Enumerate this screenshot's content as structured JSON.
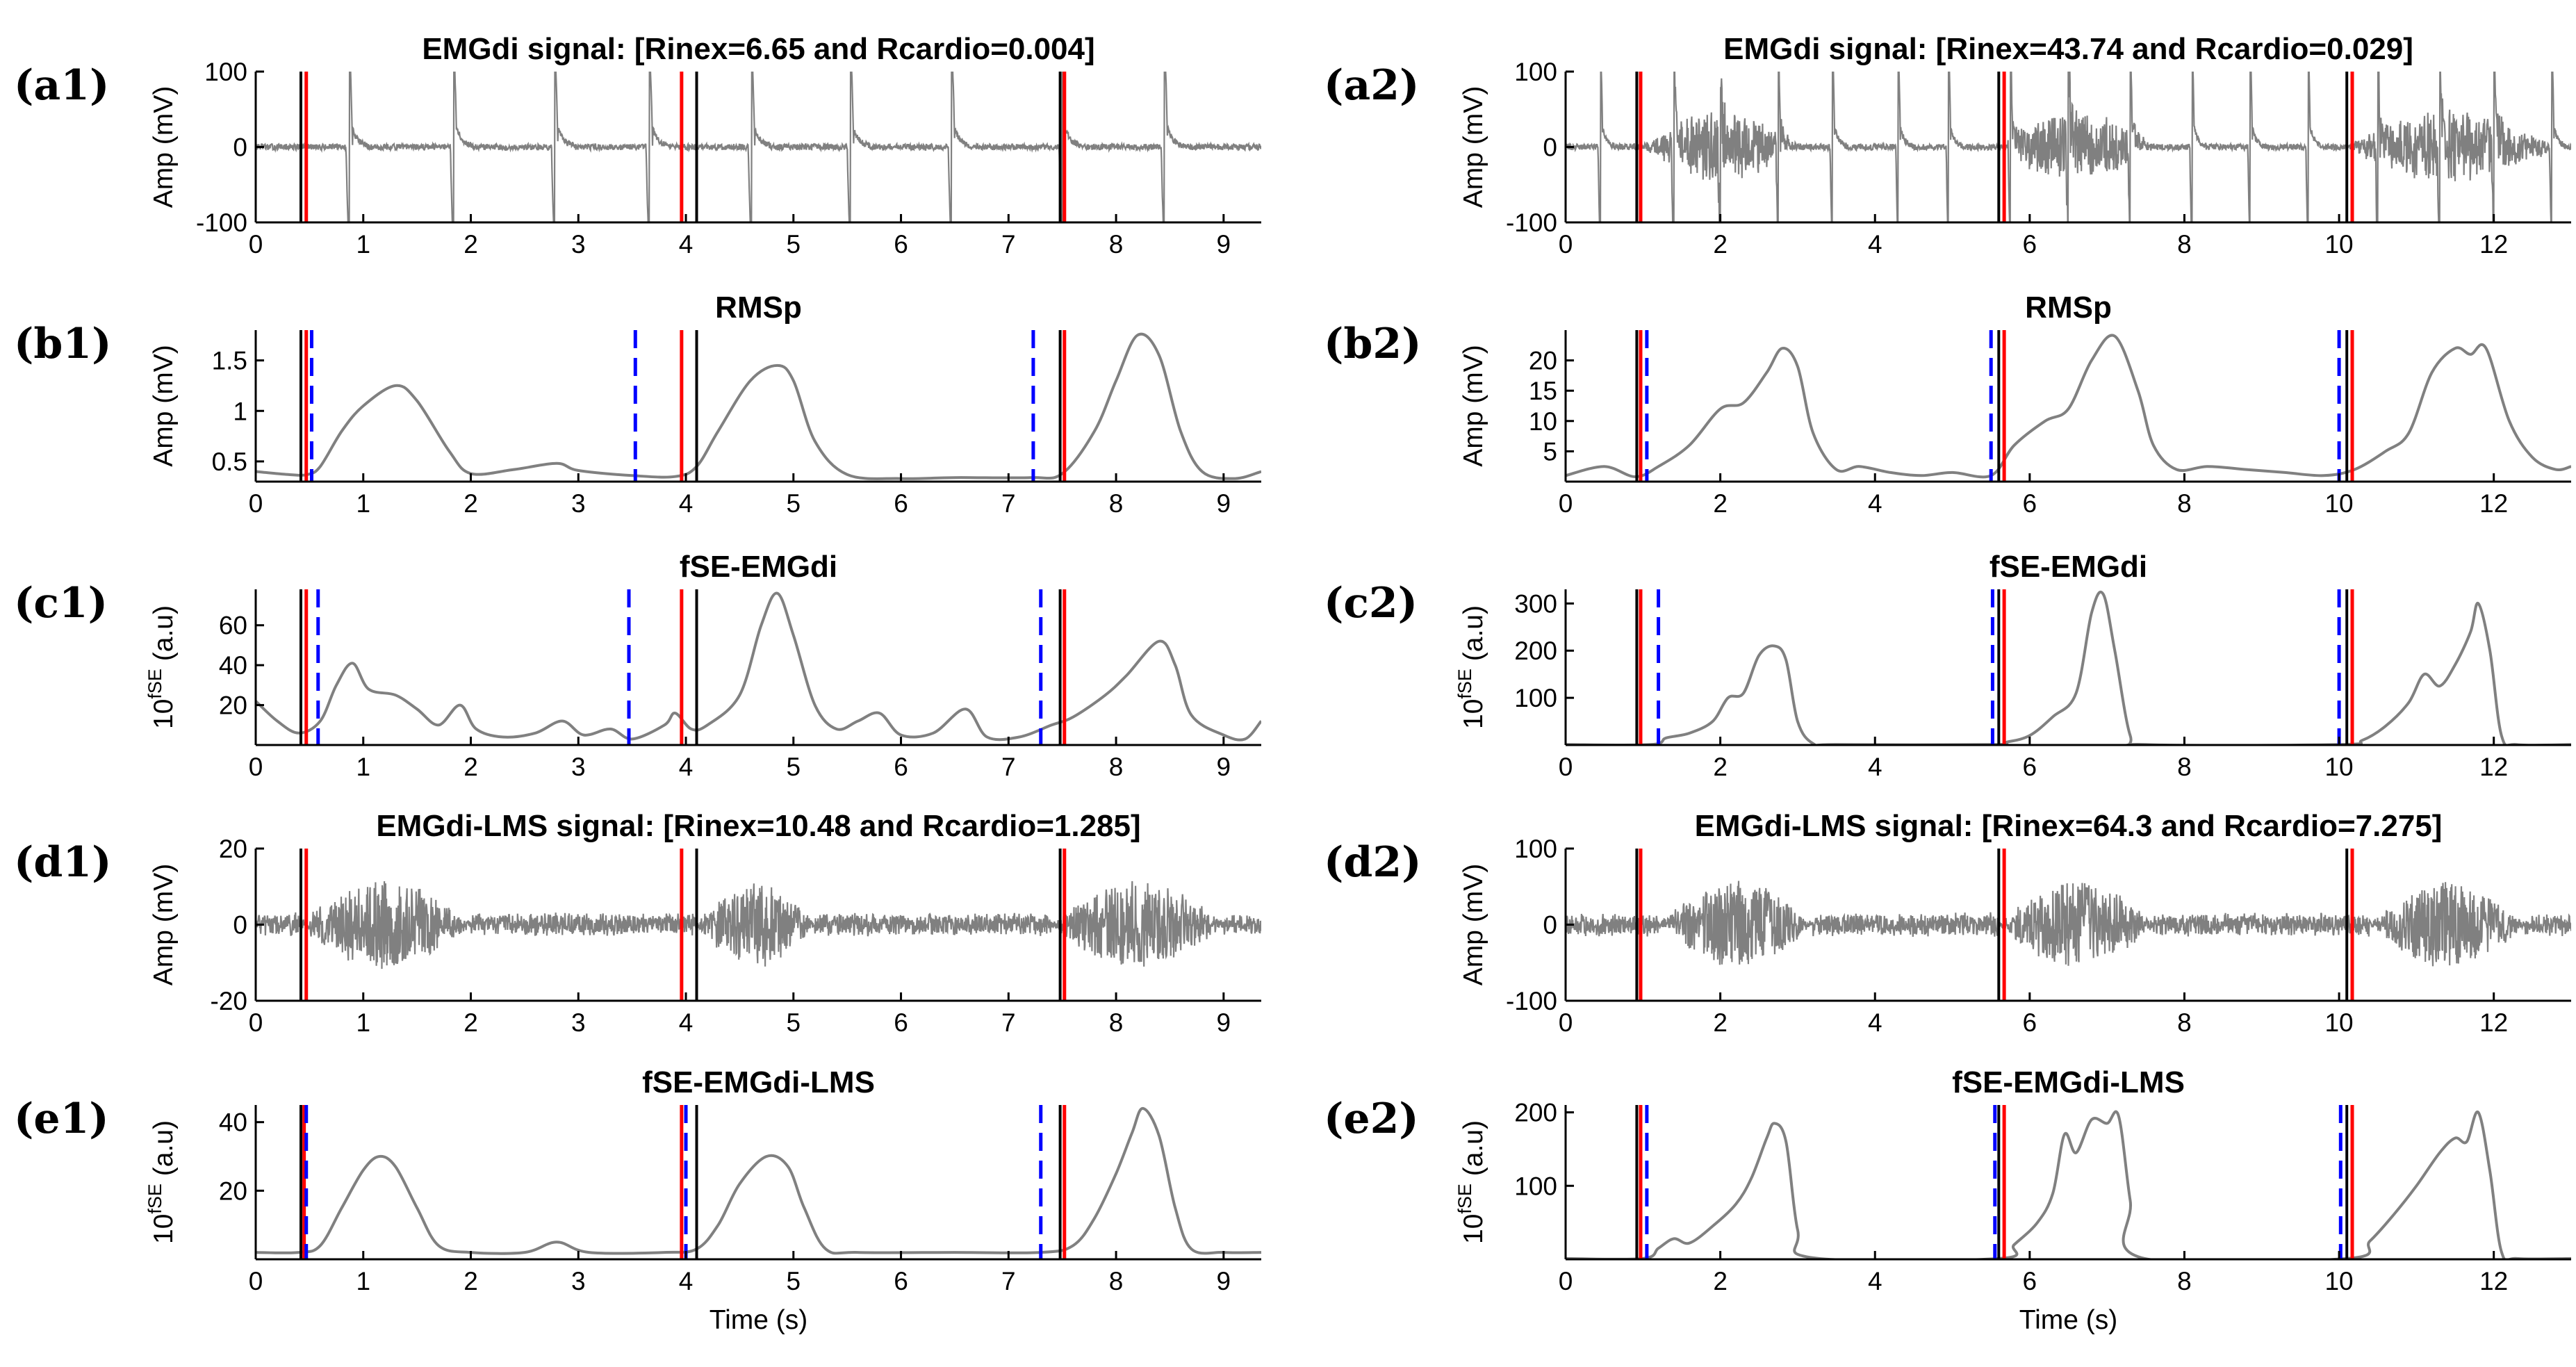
{
  "chart_data": [
    {
      "id": "a1",
      "type": "line",
      "label": "(a1)",
      "title": "EMGdi signal: [Rinex=6.65 and Rcardio=0.004]",
      "ylabel": "Amp (mV)",
      "xlabel": "",
      "xlim": [
        0,
        9.35
      ],
      "ylim": [
        -100,
        100
      ],
      "xticks": [
        0,
        1,
        2,
        3,
        4,
        5,
        6,
        7,
        8,
        9
      ],
      "yticks": [
        -100,
        0,
        100
      ],
      "signal": "emg",
      "red_lines": [
        0.47,
        3.96,
        7.52
      ],
      "black_lines": [
        0.42,
        4.1,
        7.48
      ],
      "blue_lines": [],
      "cardiac_beats": [
        0.87,
        1.84,
        2.78,
        3.66,
        4.61,
        5.53,
        6.47,
        7.5,
        8.45
      ]
    },
    {
      "id": "b1",
      "type": "line",
      "label": "(b1)",
      "title": "RMSp",
      "ylabel": "Amp (mV)",
      "xlabel": "",
      "xlim": [
        0,
        9.35
      ],
      "ylim": [
        0.3,
        1.8
      ],
      "xticks": [
        0,
        1,
        2,
        3,
        4,
        5,
        6,
        7,
        8,
        9
      ],
      "yticks": [
        0.5,
        1,
        1.5
      ],
      "signal": "curve",
      "curve": [
        [
          0,
          0.4
        ],
        [
          0.3,
          0.37
        ],
        [
          0.48,
          0.37
        ],
        [
          0.6,
          0.45
        ],
        [
          0.8,
          0.8
        ],
        [
          1.0,
          1.05
        ],
        [
          1.3,
          1.25
        ],
        [
          1.5,
          1.1
        ],
        [
          1.8,
          0.6
        ],
        [
          2.0,
          0.38
        ],
        [
          2.4,
          0.42
        ],
        [
          2.8,
          0.48
        ],
        [
          3.0,
          0.41
        ],
        [
          3.5,
          0.36
        ],
        [
          3.9,
          0.35
        ],
        [
          4.1,
          0.45
        ],
        [
          4.3,
          0.8
        ],
        [
          4.6,
          1.3
        ],
        [
          4.85,
          1.45
        ],
        [
          5.0,
          1.3
        ],
        [
          5.2,
          0.7
        ],
        [
          5.5,
          0.37
        ],
        [
          6.0,
          0.33
        ],
        [
          6.5,
          0.34
        ],
        [
          7.2,
          0.34
        ],
        [
          7.5,
          0.38
        ],
        [
          7.8,
          0.8
        ],
        [
          8.0,
          1.3
        ],
        [
          8.2,
          1.75
        ],
        [
          8.4,
          1.55
        ],
        [
          8.6,
          0.8
        ],
        [
          8.8,
          0.4
        ],
        [
          9.1,
          0.33
        ],
        [
          9.35,
          0.4
        ]
      ],
      "red_lines": [
        0.47,
        3.96,
        7.52
      ],
      "black_lines": [
        0.42,
        4.1,
        7.48
      ],
      "blue_lines": [
        0.52,
        3.53,
        7.23
      ]
    },
    {
      "id": "c1",
      "type": "line",
      "label": "(c1)",
      "title": "fSE-EMGdi",
      "ylabel": "10fSE (a.u)",
      "ylabel_base": "10",
      "ylabel_sup": "fSE",
      "ylabel_rest": " (a.u)",
      "xlabel": "",
      "xlim": [
        0,
        9.35
      ],
      "ylim": [
        0,
        78
      ],
      "xticks": [
        0,
        1,
        2,
        3,
        4,
        5,
        6,
        7,
        8,
        9
      ],
      "yticks": [
        20,
        40,
        60
      ],
      "signal": "curve",
      "curve": [
        [
          0,
          22
        ],
        [
          0.2,
          12
        ],
        [
          0.4,
          6
        ],
        [
          0.6,
          12
        ],
        [
          0.75,
          30
        ],
        [
          0.9,
          41
        ],
        [
          1.05,
          28
        ],
        [
          1.3,
          25
        ],
        [
          1.5,
          18
        ],
        [
          1.7,
          10
        ],
        [
          1.9,
          20
        ],
        [
          2.05,
          8
        ],
        [
          2.3,
          4
        ],
        [
          2.6,
          6
        ],
        [
          2.85,
          12
        ],
        [
          3.05,
          5
        ],
        [
          3.3,
          8
        ],
        [
          3.5,
          3
        ],
        [
          3.8,
          10
        ],
        [
          3.9,
          16
        ],
        [
          4.05,
          8
        ],
        [
          4.2,
          10
        ],
        [
          4.5,
          25
        ],
        [
          4.7,
          60
        ],
        [
          4.85,
          76
        ],
        [
          5.0,
          55
        ],
        [
          5.2,
          20
        ],
        [
          5.4,
          8
        ],
        [
          5.6,
          12
        ],
        [
          5.8,
          16
        ],
        [
          6.0,
          5
        ],
        [
          6.3,
          6
        ],
        [
          6.6,
          18
        ],
        [
          6.8,
          4
        ],
        [
          7.1,
          4
        ],
        [
          7.4,
          10
        ],
        [
          7.6,
          14
        ],
        [
          7.9,
          25
        ],
        [
          8.1,
          35
        ],
        [
          8.4,
          52
        ],
        [
          8.55,
          40
        ],
        [
          8.7,
          15
        ],
        [
          9.0,
          5
        ],
        [
          9.2,
          3
        ],
        [
          9.35,
          12
        ]
      ],
      "red_lines": [
        0.47,
        3.96,
        7.52
      ],
      "black_lines": [
        0.42,
        4.1,
        7.48
      ],
      "blue_lines": [
        0.58,
        3.47,
        7.3
      ]
    },
    {
      "id": "d1",
      "type": "line",
      "label": "(d1)",
      "title": "EMGdi-LMS signal: [Rinex=10.48 and Rcardio=1.285]",
      "ylabel": "Amp (mV)",
      "xlabel": "",
      "xlim": [
        0,
        9.35
      ],
      "ylim": [
        -20,
        20
      ],
      "xticks": [
        0,
        1,
        2,
        3,
        4,
        5,
        6,
        7,
        8,
        9
      ],
      "yticks": [
        -20,
        0,
        20
      ],
      "signal": "noise",
      "bursts": [
        [
          0.4,
          2.0
        ],
        [
          4.1,
          5.2
        ],
        [
          7.4,
          9.0
        ]
      ],
      "red_lines": [
        0.47,
        3.96,
        7.52
      ],
      "black_lines": [
        0.42,
        4.1,
        7.48
      ],
      "blue_lines": []
    },
    {
      "id": "e1",
      "type": "line",
      "label": "(e1)",
      "title": "fSE-EMGdi-LMS",
      "ylabel": "10fSE (a.u)",
      "ylabel_base": "10",
      "ylabel_sup": "fSE",
      "ylabel_rest": " (a.u)",
      "xlabel": "Time (s)",
      "xlim": [
        0,
        9.35
      ],
      "ylim": [
        0,
        45
      ],
      "xticks": [
        0,
        1,
        2,
        3,
        4,
        5,
        6,
        7,
        8,
        9
      ],
      "yticks": [
        20,
        40
      ],
      "signal": "curve",
      "curve": [
        [
          0,
          2
        ],
        [
          0.4,
          2
        ],
        [
          0.6,
          4
        ],
        [
          0.8,
          15
        ],
        [
          1.0,
          26
        ],
        [
          1.15,
          30
        ],
        [
          1.3,
          27
        ],
        [
          1.5,
          15
        ],
        [
          1.7,
          4
        ],
        [
          2.0,
          2
        ],
        [
          2.5,
          2
        ],
        [
          2.8,
          5
        ],
        [
          3.1,
          2
        ],
        [
          3.8,
          2
        ],
        [
          4.1,
          3
        ],
        [
          4.3,
          10
        ],
        [
          4.5,
          22
        ],
        [
          4.75,
          30
        ],
        [
          4.95,
          27
        ],
        [
          5.1,
          15
        ],
        [
          5.3,
          3
        ],
        [
          5.6,
          2
        ],
        [
          6.5,
          2
        ],
        [
          7.3,
          2
        ],
        [
          7.6,
          4
        ],
        [
          7.8,
          12
        ],
        [
          8.0,
          25
        ],
        [
          8.15,
          37
        ],
        [
          8.25,
          44
        ],
        [
          8.4,
          36
        ],
        [
          8.55,
          15
        ],
        [
          8.7,
          3
        ],
        [
          9.0,
          2
        ],
        [
          9.35,
          2
        ]
      ],
      "red_lines": [
        0.45,
        3.96,
        7.52
      ],
      "black_lines": [
        0.42,
        4.1,
        7.48
      ],
      "blue_lines": [
        0.47,
        4.0,
        7.3
      ]
    },
    {
      "id": "a2",
      "type": "line",
      "label": "(a2)",
      "title": "EMGdi signal: [Rinex=43.74 and Rcardio=0.029]",
      "ylabel": "Amp (mV)",
      "xlabel": "",
      "xlim": [
        0,
        13
      ],
      "ylim": [
        -100,
        100
      ],
      "xticks": [
        0,
        2,
        4,
        6,
        8,
        10,
        12
      ],
      "yticks": [
        -100,
        0,
        100
      ],
      "signal": "emg",
      "bursts": [
        [
          1.0,
          3.0
        ],
        [
          5.6,
          7.6
        ],
        [
          10.1,
          12.8
        ]
      ],
      "red_lines": [
        0.97,
        5.67,
        10.17
      ],
      "black_lines": [
        0.92,
        5.6,
        10.1
      ],
      "blue_lines": [],
      "cardiac_beats": [
        0.45,
        1.4,
        2.0,
        2.75,
        3.45,
        4.3,
        4.95,
        5.75,
        6.5,
        7.3,
        8.1,
        8.85,
        9.6,
        10.5,
        11.3,
        12.0,
        12.75
      ]
    },
    {
      "id": "b2",
      "type": "line",
      "label": "(b2)",
      "title": "RMSp",
      "ylabel": "Amp (mV)",
      "xlabel": "",
      "xlim": [
        0,
        13
      ],
      "ylim": [
        0,
        25
      ],
      "xticks": [
        0,
        2,
        4,
        6,
        8,
        10,
        12
      ],
      "yticks": [
        5,
        10,
        15,
        20
      ],
      "signal": "curve",
      "curve": [
        [
          0,
          1
        ],
        [
          0.5,
          2.5
        ],
        [
          0.9,
          0.8
        ],
        [
          1.2,
          2.5
        ],
        [
          1.6,
          6
        ],
        [
          2.0,
          12
        ],
        [
          2.3,
          13
        ],
        [
          2.6,
          18
        ],
        [
          2.8,
          22
        ],
        [
          3.0,
          19
        ],
        [
          3.2,
          8
        ],
        [
          3.5,
          2
        ],
        [
          3.8,
          2.5
        ],
        [
          4.2,
          1.5
        ],
        [
          4.6,
          1
        ],
        [
          5.0,
          1.5
        ],
        [
          5.5,
          1
        ],
        [
          5.8,
          6
        ],
        [
          6.2,
          10
        ],
        [
          6.5,
          12
        ],
        [
          6.8,
          20
        ],
        [
          7.1,
          24
        ],
        [
          7.4,
          15
        ],
        [
          7.6,
          6
        ],
        [
          7.9,
          2
        ],
        [
          8.3,
          2.5
        ],
        [
          8.8,
          2
        ],
        [
          9.3,
          1.5
        ],
        [
          9.8,
          1
        ],
        [
          10.2,
          2
        ],
        [
          10.6,
          5
        ],
        [
          10.9,
          8
        ],
        [
          11.2,
          18
        ],
        [
          11.5,
          22
        ],
        [
          11.7,
          21
        ],
        [
          11.9,
          22
        ],
        [
          12.2,
          10
        ],
        [
          12.5,
          4
        ],
        [
          12.8,
          2
        ],
        [
          13,
          2.5
        ]
      ],
      "red_lines": [
        0.97,
        5.67,
        10.17
      ],
      "black_lines": [
        0.92,
        5.6,
        10.1
      ],
      "blue_lines": [
        1.05,
        5.5,
        10.0
      ]
    },
    {
      "id": "c2",
      "type": "line",
      "label": "(c2)",
      "title": "fSE-EMGdi",
      "ylabel": "10fSE (a.u)",
      "ylabel_base": "10",
      "ylabel_sup": "fSE",
      "ylabel_rest": " (a.u)",
      "xlabel": "",
      "xlim": [
        0,
        13
      ],
      "ylim": [
        0,
        330
      ],
      "xticks": [
        0,
        2,
        4,
        6,
        8,
        10,
        12
      ],
      "yticks": [
        100,
        200,
        300
      ],
      "signal": "curve",
      "curve": [
        [
          0,
          1
        ],
        [
          1.1,
          1
        ],
        [
          1.3,
          15
        ],
        [
          1.6,
          25
        ],
        [
          1.9,
          50
        ],
        [
          2.1,
          100
        ],
        [
          2.3,
          110
        ],
        [
          2.5,
          190
        ],
        [
          2.7,
          210
        ],
        [
          2.85,
          180
        ],
        [
          3.0,
          50
        ],
        [
          3.2,
          3
        ],
        [
          3.5,
          1
        ],
        [
          5.5,
          1
        ],
        [
          5.7,
          6
        ],
        [
          6.0,
          20
        ],
        [
          6.3,
          60
        ],
        [
          6.6,
          110
        ],
        [
          6.8,
          280
        ],
        [
          6.95,
          320
        ],
        [
          7.1,
          200
        ],
        [
          7.3,
          20
        ],
        [
          7.5,
          1
        ],
        [
          10.0,
          1
        ],
        [
          10.3,
          10
        ],
        [
          10.6,
          40
        ],
        [
          10.9,
          90
        ],
        [
          11.1,
          150
        ],
        [
          11.3,
          125
        ],
        [
          11.5,
          170
        ],
        [
          11.7,
          240
        ],
        [
          11.8,
          300
        ],
        [
          11.95,
          200
        ],
        [
          12.1,
          20
        ],
        [
          12.3,
          1
        ],
        [
          13,
          1
        ]
      ],
      "red_lines": [
        0.97,
        5.67,
        10.17
      ],
      "black_lines": [
        0.92,
        5.6,
        10.1
      ],
      "blue_lines": [
        1.2,
        5.52,
        10.0
      ]
    },
    {
      "id": "d2",
      "type": "line",
      "label": "(d2)",
      "title": "EMGdi-LMS signal: [Rinex=64.3 and Rcardio=7.275]",
      "ylabel": "Amp (mV)",
      "xlabel": "",
      "xlim": [
        0,
        13
      ],
      "ylim": [
        -100,
        100
      ],
      "xticks": [
        0,
        2,
        4,
        6,
        8,
        10,
        12
      ],
      "yticks": [
        -100,
        0,
        100
      ],
      "signal": "noise",
      "bursts": [
        [
          1.2,
          3.2
        ],
        [
          5.6,
          7.6
        ],
        [
          10.4,
          12.4
        ]
      ],
      "red_lines": [
        0.97,
        5.67,
        10.17
      ],
      "black_lines": [
        0.92,
        5.6,
        10.1
      ],
      "blue_lines": []
    },
    {
      "id": "e2",
      "type": "line",
      "label": "(e2)",
      "title": "fSE-EMGdi-LMS",
      "ylabel": "10fSE (a.u)",
      "ylabel_base": "10",
      "ylabel_sup": "fSE",
      "ylabel_rest": " (a.u)",
      "xlabel": "Time (s)",
      "xlim": [
        0,
        13
      ],
      "ylim": [
        0,
        210
      ],
      "xticks": [
        0,
        2,
        4,
        6,
        8,
        10,
        12
      ],
      "yticks": [
        100,
        200
      ],
      "signal": "curve",
      "curve": [
        [
          0,
          1
        ],
        [
          1.0,
          1
        ],
        [
          1.2,
          15
        ],
        [
          1.4,
          28
        ],
        [
          1.6,
          22
        ],
        [
          1.9,
          45
        ],
        [
          2.2,
          75
        ],
        [
          2.4,
          110
        ],
        [
          2.6,
          165
        ],
        [
          2.7,
          185
        ],
        [
          2.85,
          160
        ],
        [
          3.0,
          40
        ],
        [
          3.2,
          2
        ],
        [
          5.6,
          1
        ],
        [
          5.8,
          20
        ],
        [
          6.1,
          50
        ],
        [
          6.3,
          90
        ],
        [
          6.45,
          170
        ],
        [
          6.6,
          145
        ],
        [
          6.8,
          190
        ],
        [
          7.0,
          185
        ],
        [
          7.15,
          195
        ],
        [
          7.3,
          80
        ],
        [
          7.45,
          2
        ],
        [
          10.1,
          1
        ],
        [
          10.4,
          25
        ],
        [
          10.7,
          60
        ],
        [
          11.0,
          100
        ],
        [
          11.3,
          145
        ],
        [
          11.5,
          165
        ],
        [
          11.65,
          160
        ],
        [
          11.8,
          200
        ],
        [
          11.95,
          120
        ],
        [
          12.1,
          10
        ],
        [
          12.3,
          1
        ],
        [
          13,
          1
        ]
      ],
      "red_lines": [
        0.97,
        5.67,
        10.17
      ],
      "black_lines": [
        0.92,
        5.6,
        10.1
      ],
      "blue_lines": [
        1.05,
        5.55,
        10.02
      ]
    }
  ],
  "colors": {
    "signal": "#808080",
    "red": "#ff0000",
    "black": "#000000",
    "blue": "#0000ff",
    "axis": "#000000"
  }
}
